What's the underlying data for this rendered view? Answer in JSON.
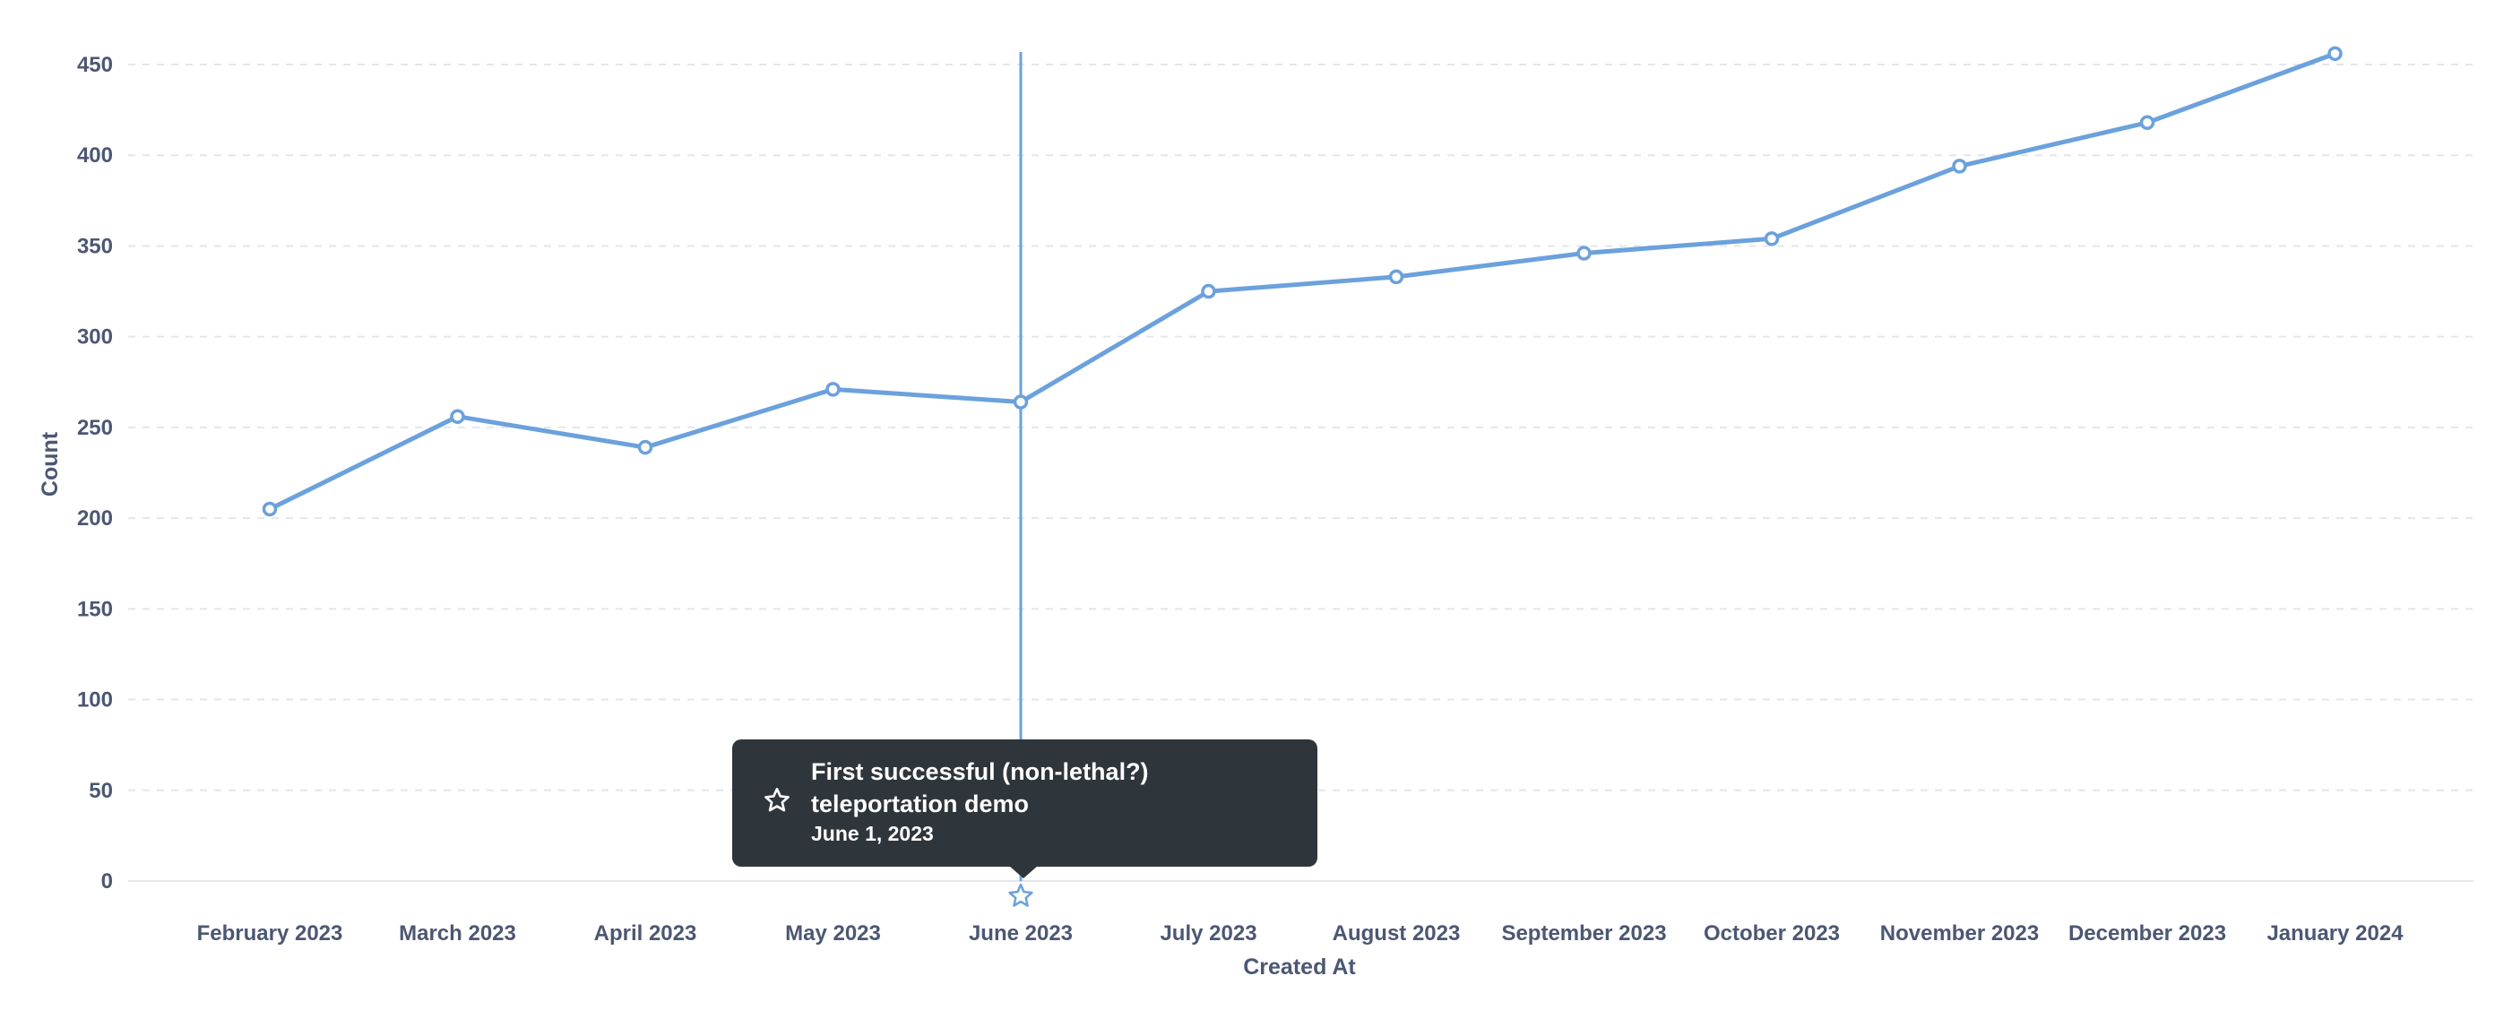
{
  "chart_data": {
    "type": "line",
    "xlabel": "Created At",
    "ylabel": "Count",
    "ylim": [
      0,
      450
    ],
    "yticks": [
      0,
      50,
      100,
      150,
      200,
      250,
      300,
      350,
      400,
      450
    ],
    "grid": true,
    "categories": [
      "February 2023",
      "March 2023",
      "April 2023",
      "May 2023",
      "June 2023",
      "July 2023",
      "August 2023",
      "September 2023",
      "October 2023",
      "November 2023",
      "December 2023",
      "January 2024"
    ],
    "series": [
      {
        "values": [
          205,
          256,
          239,
          271,
          264,
          325,
          333,
          346,
          354,
          394,
          418,
          456
        ],
        "color": "#6ba1dc"
      }
    ],
    "event": {
      "category": "June 2023",
      "title": "First successful (non-lethal?) teleportation demo",
      "date": "June 1, 2023",
      "icon": "star-icon"
    }
  }
}
